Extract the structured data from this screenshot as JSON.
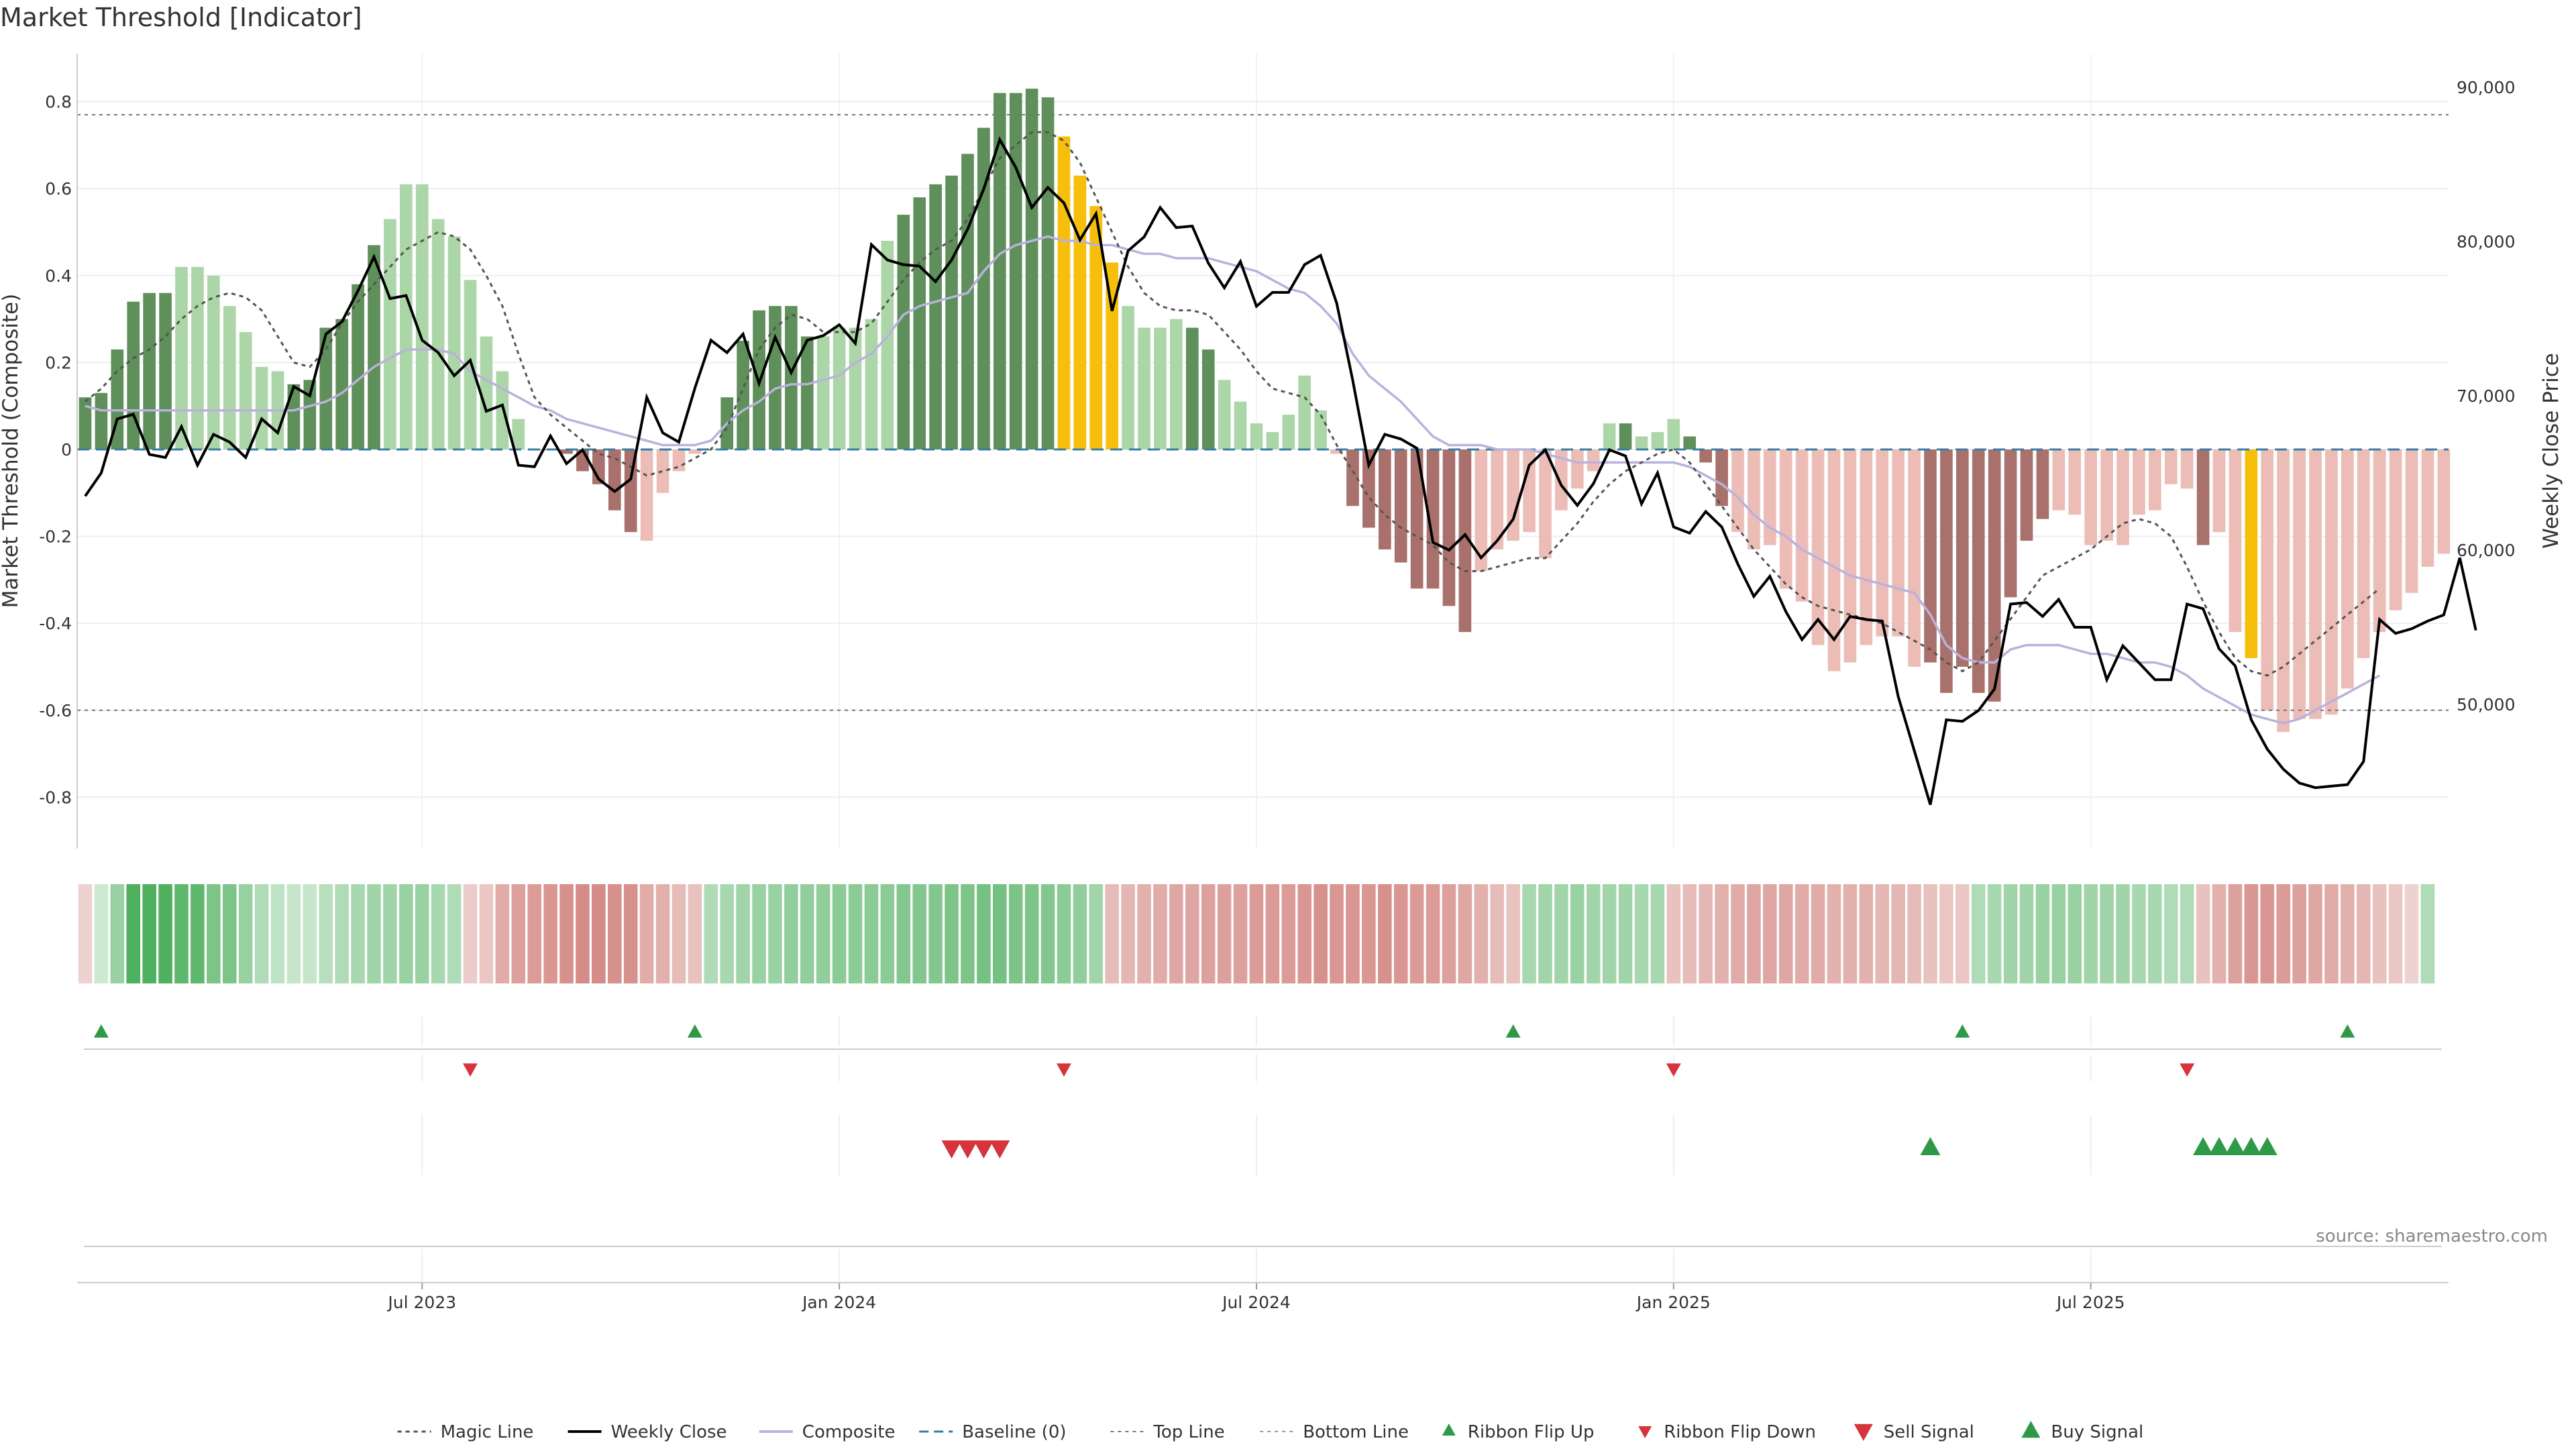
{
  "title": "Market Threshold [Indicator]",
  "source": "source: sharemaestro.com",
  "colors": {
    "bull_dark": "#5f8f5a",
    "bull_light": "#acd6a8",
    "bear_dark": "#a9716b",
    "bear_light": "#ecbdb7",
    "extreme": "#f5bf0c",
    "composite": "#b9b2dc",
    "close": "#000000",
    "magic": "#555555",
    "ribbon_up": "#2e9a48",
    "sell": "#d6333b",
    "buy": "#2e9a48"
  },
  "chart_data": {
    "type": "bar",
    "ylabel": "Market Threshold (Composite)",
    "y2label": "Weekly Close Price",
    "ylim": [
      -0.92,
      0.92
    ],
    "yticks": [
      "0.8",
      "0.6",
      "0.4",
      "0.2",
      "0",
      "-0.2",
      "-0.4",
      "-0.6",
      "-0.8"
    ],
    "y2lim": [
      41000,
      92000
    ],
    "y2ticks": [
      "90,000",
      "80,000",
      "70,000",
      "60,000",
      "50,000"
    ],
    "top_line": 0.77,
    "bottom_line": -0.6,
    "xticks": [
      "Jul 2023",
      "Jan 2024",
      "Jul 2024",
      "Jan 2025",
      "Jul 2025"
    ],
    "xtick_weeks": [
      21,
      47,
      73,
      99,
      125
    ],
    "legend": [
      "Magic Line",
      "Weekly Close",
      "Composite",
      "Baseline (0)",
      "Top Line",
      "Bottom Line",
      "Ribbon Flip Up",
      "Ribbon Flip Down",
      "Sell Signal",
      "Buy Signal"
    ],
    "histogram": [
      0.12,
      0.13,
      0.23,
      0.34,
      0.36,
      0.36,
      0.42,
      0.42,
      0.4,
      0.33,
      0.27,
      0.19,
      0.18,
      0.15,
      0.16,
      0.28,
      0.3,
      0.38,
      0.47,
      0.53,
      0.61,
      0.61,
      0.53,
      0.49,
      0.39,
      0.26,
      0.18,
      0.07,
      0.0,
      0.0,
      -0.01,
      -0.05,
      -0.08,
      -0.14,
      -0.19,
      -0.21,
      -0.1,
      -0.05,
      -0.01,
      0.0,
      0.12,
      0.25,
      0.32,
      0.33,
      0.33,
      0.26,
      0.26,
      0.28,
      0.28,
      0.3,
      0.48,
      0.54,
      0.58,
      0.61,
      0.63,
      0.68,
      0.74,
      0.82,
      0.82,
      0.83,
      0.81,
      0.72,
      0.63,
      0.56,
      0.43,
      0.33,
      0.28,
      0.28,
      0.3,
      0.28,
      0.23,
      0.16,
      0.11,
      0.06,
      0.04,
      0.08,
      0.17,
      0.09,
      -0.01,
      -0.13,
      -0.18,
      -0.23,
      -0.26,
      -0.32,
      -0.32,
      -0.36,
      -0.42,
      -0.28,
      -0.23,
      -0.21,
      -0.19,
      -0.25,
      -0.14,
      -0.09,
      -0.05,
      0.06,
      0.06,
      0.03,
      0.04,
      0.07,
      0.03,
      -0.03,
      -0.13,
      -0.19,
      -0.23,
      -0.22,
      -0.32,
      -0.35,
      -0.45,
      -0.51,
      -0.49,
      -0.45,
      -0.43,
      -0.43,
      -0.5,
      -0.49,
      -0.56,
      -0.5,
      -0.56,
      -0.58,
      -0.34,
      -0.21,
      -0.16,
      -0.14,
      -0.15,
      -0.22,
      -0.21,
      -0.22,
      -0.15,
      -0.14,
      -0.08,
      -0.09,
      -0.22,
      -0.19,
      -0.42,
      -0.48,
      -0.6,
      -0.65,
      -0.62,
      -0.62,
      -0.61,
      -0.55,
      -0.48,
      -0.42,
      -0.37,
      -0.33,
      -0.27,
      -0.24
    ],
    "bar_style": "ddddddlllllllddddddllllllllldddddddlllllddddddlllllddddddddddeeeellllddllllllllddddddddllllllllldllldddllllllllllllddddddddllllllllldllellllllllllllddlleeeeeeeellllll",
    "composite": [
      0.1,
      0.09,
      0.09,
      0.09,
      0.09,
      0.09,
      0.09,
      0.09,
      0.09,
      0.09,
      0.09,
      0.09,
      0.09,
      0.09,
      0.1,
      0.11,
      0.13,
      0.16,
      0.19,
      0.21,
      0.23,
      0.23,
      0.23,
      0.22,
      0.18,
      0.16,
      0.14,
      0.12,
      0.1,
      0.09,
      0.07,
      0.06,
      0.05,
      0.04,
      0.03,
      0.02,
      0.01,
      0.01,
      0.01,
      0.02,
      0.06,
      0.09,
      0.11,
      0.14,
      0.15,
      0.15,
      0.16,
      0.17,
      0.2,
      0.22,
      0.26,
      0.31,
      0.33,
      0.34,
      0.35,
      0.36,
      0.41,
      0.45,
      0.47,
      0.48,
      0.49,
      0.48,
      0.48,
      0.47,
      0.47,
      0.46,
      0.45,
      0.45,
      0.44,
      0.44,
      0.44,
      0.43,
      0.42,
      0.41,
      0.39,
      0.37,
      0.36,
      0.33,
      0.29,
      0.22,
      0.17,
      0.14,
      0.11,
      0.07,
      0.03,
      0.01,
      0.01,
      0.01,
      0.0,
      0.0,
      0.0,
      -0.01,
      -0.02,
      -0.03,
      -0.03,
      -0.03,
      -0.03,
      -0.03,
      -0.03,
      -0.03,
      -0.04,
      -0.06,
      -0.08,
      -0.11,
      -0.15,
      -0.18,
      -0.2,
      -0.23,
      -0.25,
      -0.27,
      -0.29,
      -0.3,
      -0.31,
      -0.32,
      -0.33,
      -0.38,
      -0.45,
      -0.48,
      -0.49,
      -0.49,
      -0.46,
      -0.45,
      -0.45,
      -0.45,
      -0.46,
      -0.47,
      -0.47,
      -0.48,
      -0.49,
      -0.49,
      -0.5,
      -0.52,
      -0.55,
      -0.57,
      -0.59,
      -0.61,
      -0.62,
      -0.63,
      -0.62,
      -0.6,
      -0.58,
      -0.56,
      -0.54,
      -0.52
    ],
    "magic_line": [
      0.11,
      0.14,
      0.18,
      0.21,
      0.23,
      0.26,
      0.3,
      0.33,
      0.35,
      0.36,
      0.35,
      0.32,
      0.26,
      0.2,
      0.19,
      0.23,
      0.29,
      0.34,
      0.38,
      0.42,
      0.46,
      0.48,
      0.5,
      0.49,
      0.46,
      0.4,
      0.33,
      0.22,
      0.12,
      0.08,
      0.05,
      0.02,
      -0.01,
      -0.02,
      -0.04,
      -0.06,
      -0.05,
      -0.04,
      -0.02,
      0.0,
      0.05,
      0.14,
      0.23,
      0.28,
      0.31,
      0.3,
      0.27,
      0.27,
      0.27,
      0.29,
      0.34,
      0.39,
      0.43,
      0.46,
      0.48,
      0.53,
      0.6,
      0.67,
      0.7,
      0.73,
      0.73,
      0.71,
      0.66,
      0.58,
      0.5,
      0.42,
      0.36,
      0.33,
      0.32,
      0.32,
      0.31,
      0.27,
      0.23,
      0.18,
      0.14,
      0.13,
      0.12,
      0.08,
      0.01,
      -0.05,
      -0.11,
      -0.15,
      -0.18,
      -0.2,
      -0.22,
      -0.26,
      -0.28,
      -0.28,
      -0.27,
      -0.26,
      -0.25,
      -0.25,
      -0.21,
      -0.17,
      -0.12,
      -0.08,
      -0.05,
      -0.03,
      -0.01,
      0.0,
      -0.03,
      -0.08,
      -0.13,
      -0.18,
      -0.23,
      -0.27,
      -0.31,
      -0.34,
      -0.36,
      -0.37,
      -0.38,
      -0.39,
      -0.4,
      -0.42,
      -0.44,
      -0.46,
      -0.49,
      -0.51,
      -0.49,
      -0.44,
      -0.39,
      -0.34,
      -0.29,
      -0.27,
      -0.25,
      -0.23,
      -0.2,
      -0.17,
      -0.16,
      -0.17,
      -0.2,
      -0.27,
      -0.35,
      -0.42,
      -0.48,
      -0.51,
      -0.52,
      -0.5,
      -0.47,
      -0.44,
      -0.41,
      -0.38,
      -0.35,
      -0.32
    ],
    "weekly_close": [
      63500,
      65000,
      68500,
      68800,
      66200,
      66000,
      68000,
      65500,
      67500,
      67000,
      66000,
      68500,
      67600,
      70600,
      70000,
      74000,
      74800,
      76800,
      79000,
      76300,
      76500,
      73600,
      72800,
      71300,
      72300,
      69000,
      69400,
      65500,
      65400,
      67400,
      65600,
      66500,
      64600,
      63800,
      64600,
      69900,
      67600,
      67000,
      70500,
      73600,
      72800,
      74000,
      70800,
      73800,
      71500,
      73600,
      73900,
      74600,
      73400,
      79800,
      78800,
      78500,
      78400,
      77400,
      78800,
      80800,
      83400,
      86600,
      84800,
      82200,
      83500,
      82500,
      80100,
      81800,
      75500,
      79400,
      80300,
      82200,
      80900,
      81000,
      78600,
      77000,
      78700,
      75800,
      76700,
      76700,
      78500,
      79100,
      76000,
      71000,
      65500,
      67500,
      67200,
      66600,
      60500,
      60000,
      61000,
      59500,
      60600,
      62000,
      65500,
      66500,
      64200,
      62900,
      64300,
      66500,
      66100,
      63000,
      65000,
      61500,
      61100,
      62500,
      61500,
      59100,
      57000,
      58300,
      56000,
      54200,
      55500,
      54200,
      55700,
      55500,
      55400,
      50500,
      47000,
      43500,
      49000,
      48900,
      49600,
      51000,
      56500,
      56600,
      55700,
      56800,
      55000,
      55000,
      51600,
      53800,
      52700,
      51600,
      51600,
      56500,
      56200,
      53600,
      52500,
      49000,
      47100,
      45800,
      44900,
      44600,
      44700,
      44800,
      46300,
      55500,
      54600,
      54900,
      55400,
      55800,
      59500,
      54800
    ],
    "ribbon": [
      -0.15,
      0.1,
      0.45,
      0.95,
      0.95,
      0.95,
      0.85,
      0.85,
      0.65,
      0.65,
      0.45,
      0.3,
      0.2,
      0.15,
      0.15,
      0.25,
      0.3,
      0.35,
      0.4,
      0.4,
      0.45,
      0.45,
      0.35,
      0.3,
      -0.2,
      -0.25,
      -0.5,
      -0.6,
      -0.65,
      -0.7,
      -0.75,
      -0.8,
      -0.8,
      -0.75,
      -0.75,
      -0.5,
      -0.45,
      -0.35,
      -0.3,
      0.3,
      0.35,
      0.4,
      0.45,
      0.45,
      0.5,
      0.5,
      0.5,
      0.55,
      0.55,
      0.55,
      0.55,
      0.6,
      0.6,
      0.6,
      0.65,
      0.65,
      0.7,
      0.7,
      0.65,
      0.65,
      0.6,
      0.55,
      0.5,
      0.4,
      -0.35,
      -0.4,
      -0.45,
      -0.5,
      -0.55,
      -0.55,
      -0.6,
      -0.6,
      -0.6,
      -0.65,
      -0.65,
      -0.65,
      -0.7,
      -0.75,
      -0.7,
      -0.7,
      -0.7,
      -0.75,
      -0.7,
      -0.65,
      -0.65,
      -0.6,
      -0.55,
      -0.45,
      -0.35,
      -0.3,
      0.35,
      0.4,
      0.4,
      0.45,
      0.4,
      0.4,
      0.4,
      0.35,
      0.35,
      -0.3,
      -0.35,
      -0.4,
      -0.45,
      -0.5,
      -0.55,
      -0.55,
      -0.55,
      -0.5,
      -0.5,
      -0.45,
      -0.45,
      -0.45,
      -0.4,
      -0.4,
      -0.35,
      -0.3,
      -0.25,
      -0.25,
      0.3,
      0.35,
      0.4,
      0.4,
      0.45,
      0.45,
      0.45,
      0.4,
      0.4,
      0.4,
      0.35,
      0.35,
      0.3,
      0.3,
      -0.3,
      -0.45,
      -0.6,
      -0.7,
      -0.7,
      -0.65,
      -0.6,
      -0.55,
      -0.5,
      -0.45,
      -0.4,
      -0.3,
      -0.25,
      -0.15,
      0.3
    ],
    "ribbon_flip_up_weeks": [
      1,
      38,
      89,
      117,
      141
    ],
    "ribbon_flip_down_weeks": [
      24,
      61,
      99,
      131
    ],
    "sell_signal_weeks": [
      54,
      55,
      56,
      57
    ],
    "buy_signal_weeks": [
      115,
      132,
      133,
      134,
      135,
      136
    ]
  }
}
